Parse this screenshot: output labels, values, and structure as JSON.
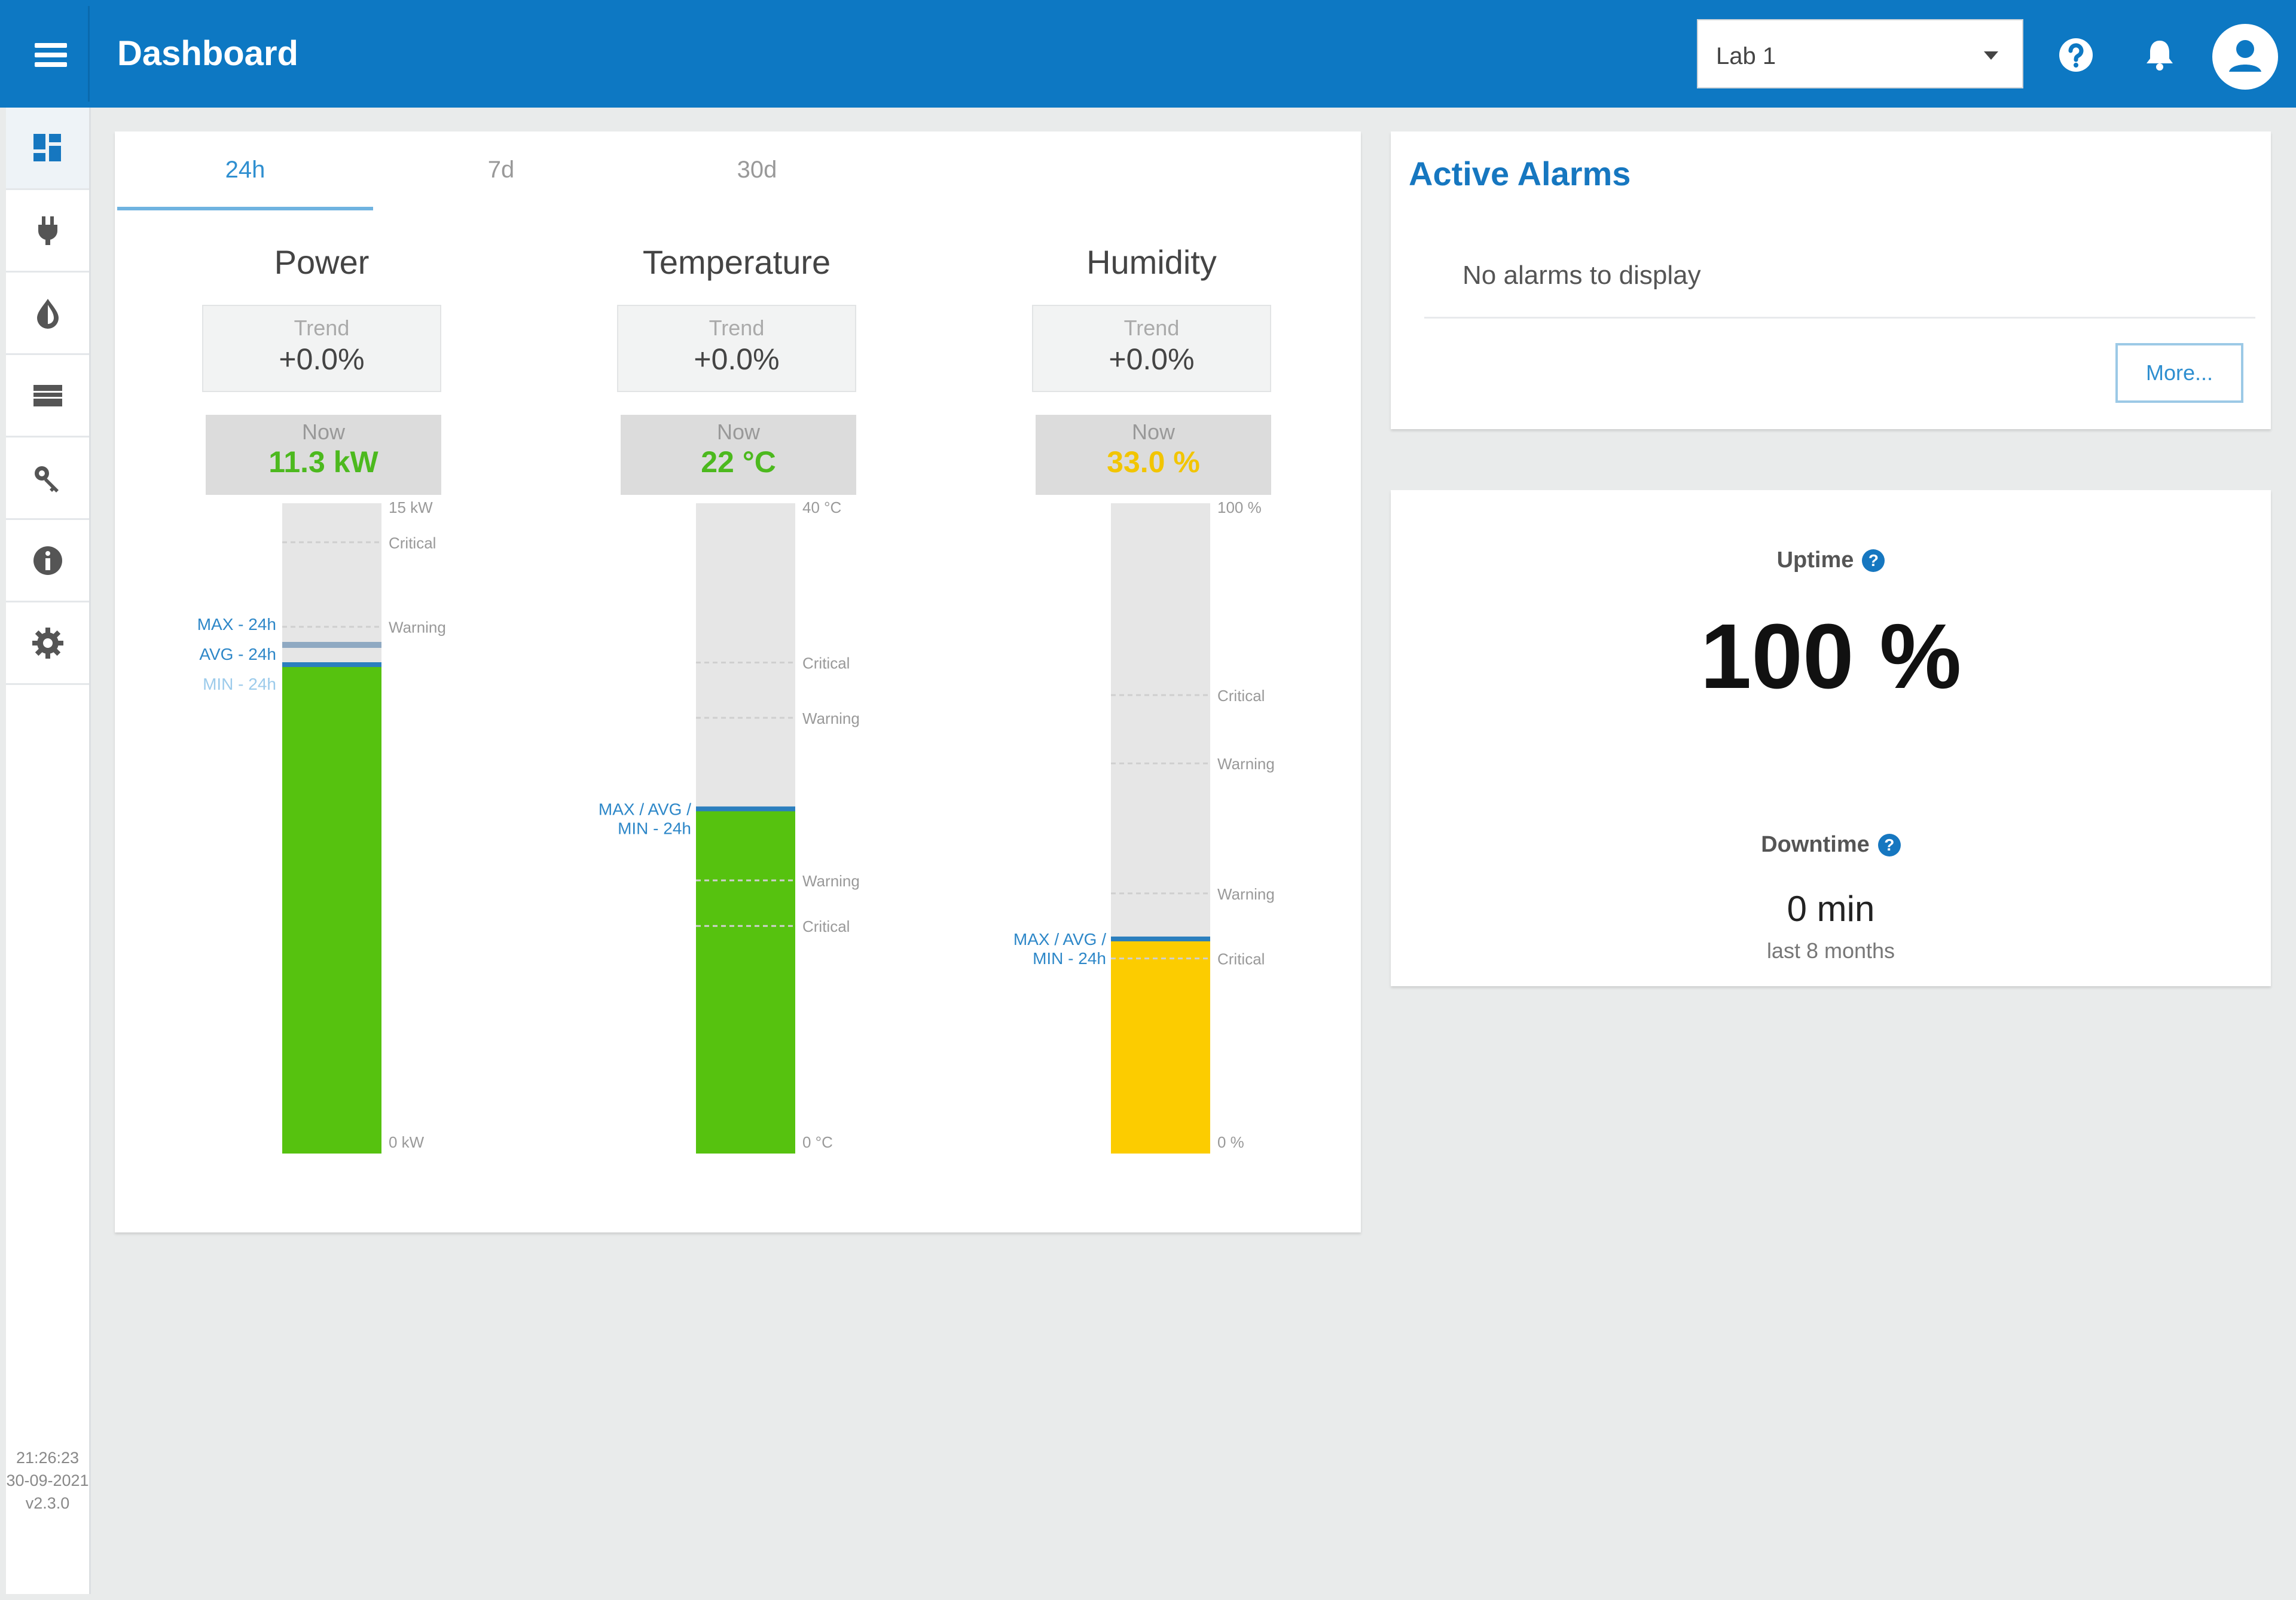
{
  "header": {
    "title": "Dashboard",
    "site_select": "Lab 1",
    "icons": [
      "menu-icon",
      "help-icon",
      "bell-icon",
      "user-icon"
    ]
  },
  "sidebar": {
    "items": [
      {
        "name": "dashboard-icon",
        "active": true
      },
      {
        "name": "power-plug-icon",
        "active": false
      },
      {
        "name": "humidity-drop-icon",
        "active": false
      },
      {
        "name": "devices-list-icon",
        "active": false
      },
      {
        "name": "key-icon",
        "active": false
      },
      {
        "name": "info-icon",
        "active": false
      },
      {
        "name": "gear-icon",
        "active": false
      }
    ],
    "footer": {
      "time": "21:26:23",
      "date": "30-09-2021",
      "version": "v2.3.0"
    }
  },
  "tabs": [
    {
      "label": "24h",
      "active": true
    },
    {
      "label": "7d",
      "active": false
    },
    {
      "label": "30d",
      "active": false
    }
  ],
  "gauges": [
    {
      "title": "Power",
      "trend_label": "Trend",
      "trend": "+0.0%",
      "now_label": "Now",
      "now": "11.3 kW",
      "now_color": "#4cb91e",
      "fill_color": "#56c20f",
      "max_label": "15 kW",
      "min_label": "0 kW",
      "fill_fraction": 0.75,
      "stat_labels": [
        "MAX - 24h",
        "AVG - 24h",
        "MIN - 24h"
      ],
      "thresholds": [
        {
          "label": "Critical",
          "fraction": 0.94
        },
        {
          "label": "Warning",
          "fraction": 0.81
        }
      ]
    },
    {
      "title": "Temperature",
      "trend_label": "Trend",
      "trend": "+0.0%",
      "now_label": "Now",
      "now": "22 °C",
      "now_color": "#4cb91e",
      "fill_color": "#56c20f",
      "max_label": "40 °C",
      "min_label": "0 °C",
      "fill_fraction": 0.53,
      "stat_labels": [
        "MAX / AVG /",
        "MIN - 24h"
      ],
      "thresholds": [
        {
          "label": "Critical",
          "fraction": 0.755
        },
        {
          "label": "Warning",
          "fraction": 0.67
        },
        {
          "label": "Warning",
          "fraction": 0.42
        },
        {
          "label": "Critical",
          "fraction": 0.35
        }
      ]
    },
    {
      "title": "Humidity",
      "trend_label": "Trend",
      "trend": "+0.0%",
      "now_label": "Now",
      "now": "33.0 %",
      "now_color": "#f2c500",
      "fill_color": "#fccc00",
      "max_label": "100 %",
      "min_label": "0 %",
      "fill_fraction": 0.33,
      "stat_labels": [
        "MAX / AVG /",
        "MIN - 24h"
      ],
      "thresholds": [
        {
          "label": "Critical",
          "fraction": 0.705
        },
        {
          "label": "Warning",
          "fraction": 0.6
        },
        {
          "label": "Warning",
          "fraction": 0.4
        },
        {
          "label": "Critical",
          "fraction": 0.3
        }
      ]
    }
  ],
  "alarms": {
    "title": "Active Alarms",
    "empty_text": "No alarms to display",
    "more_label": "More..."
  },
  "uptime": {
    "uptime_label": "Uptime",
    "uptime_value": "100 %",
    "downtime_label": "Downtime",
    "downtime_value": "0 min",
    "period": "last 8 months"
  },
  "colors": {
    "accent": "#0d78c3",
    "link": "#1677c0",
    "green": "#56c20f",
    "yellow": "#fccc00"
  }
}
